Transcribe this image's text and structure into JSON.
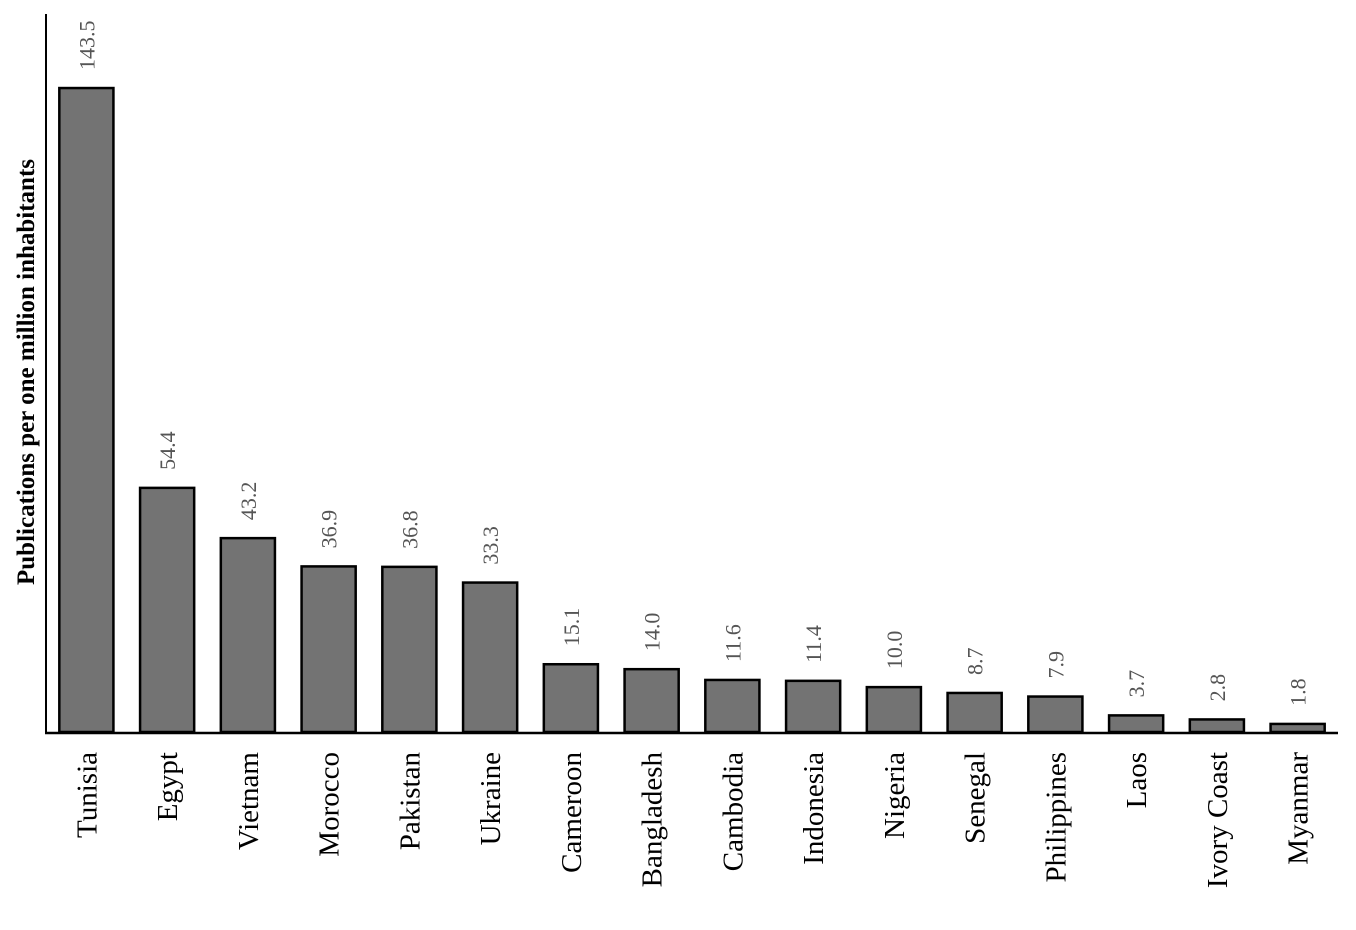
{
  "chart_data": {
    "type": "bar",
    "y_label": "Publications per one million inhabitants",
    "categories": [
      "Tunisia",
      "Egypt",
      "Vietnam",
      "Morocco",
      "Pakistan",
      "Ukraine",
      "Cameroon",
      "Bangladesh",
      "Cambodia",
      "Indonesia",
      "Nigeria",
      "Senegal",
      "Philippines",
      "Laos",
      "Ivory Coast",
      "Myanmar"
    ],
    "values": [
      143.5,
      54.4,
      43.2,
      36.9,
      36.8,
      33.3,
      15.1,
      14.0,
      11.6,
      11.4,
      10.0,
      8.7,
      7.9,
      3.7,
      2.8,
      1.8
    ],
    "value_labels": [
      "143.5",
      "54.4",
      "43.2",
      "36.9",
      "36.8",
      "33.3",
      "15.1",
      "14.0",
      "11.6",
      "11.4",
      "10.0",
      "8.7",
      "7.9",
      "3.7",
      "2.8",
      "1.8"
    ],
    "color": "#737373",
    "ylim": [
      0,
      160
    ]
  }
}
